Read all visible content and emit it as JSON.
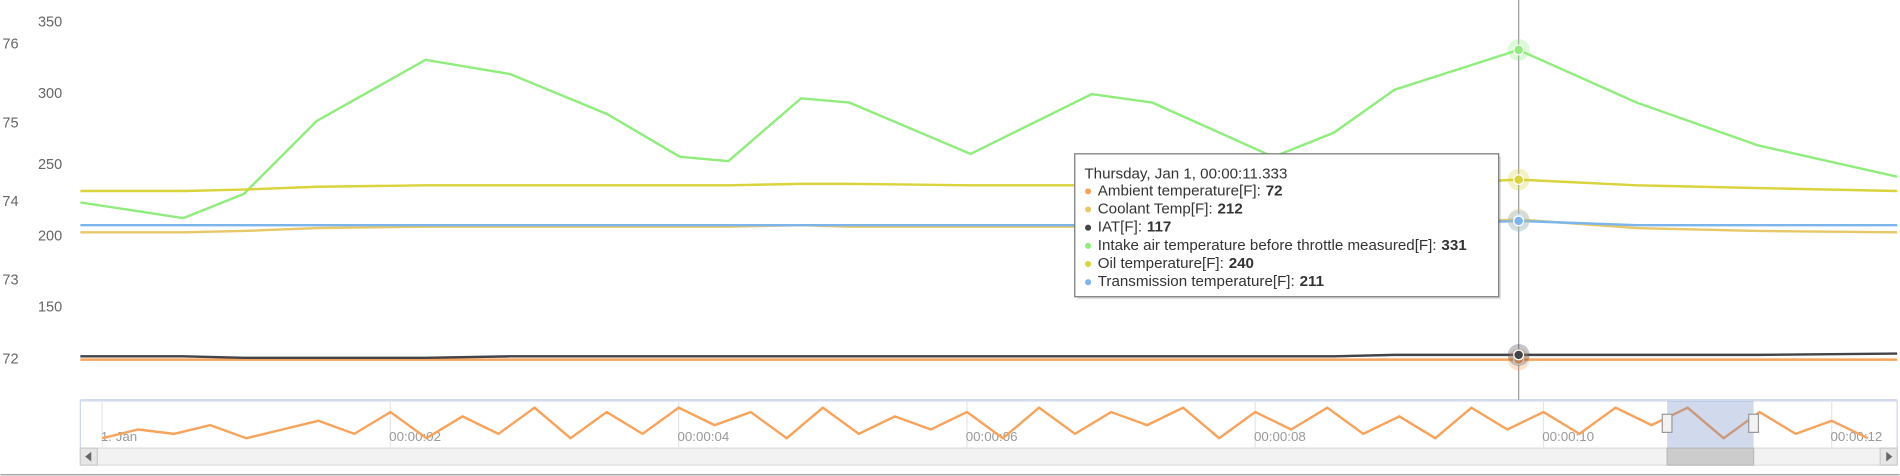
{
  "chart_data": {
    "type": "line",
    "x": [
      10.858,
      10.892,
      10.912,
      10.936,
      10.972,
      11.0,
      11.032,
      11.056,
      11.072,
      11.096,
      11.112,
      11.152,
      11.192,
      11.212,
      11.252,
      11.272,
      11.292,
      11.333,
      11.372,
      11.412,
      11.458
    ],
    "xlim": [
      10.858,
      11.458
    ],
    "ylim": [
      85.6,
      366
    ],
    "yticks": [
      150,
      200,
      250,
      300,
      350
    ],
    "y2lim": [
      71.49,
      76.57
    ],
    "y2ticks": [
      72,
      73,
      74,
      75,
      76
    ],
    "series": [
      {
        "name": "Ambient temperature[F]",
        "color": "#f7a35c",
        "axis": "y2",
        "values": [
          72,
          72,
          72,
          72,
          72,
          72,
          72,
          72,
          72,
          72,
          72,
          72,
          72,
          72,
          72,
          72,
          72,
          72,
          72,
          72,
          72
        ]
      },
      {
        "name": "Coolant Temp[F]",
        "color": "#e8c766",
        "values": [
          203,
          203,
          204,
          206,
          207,
          207,
          207,
          207,
          207,
          208,
          207,
          207,
          207,
          207,
          207,
          208,
          208,
          212,
          206,
          204,
          203
        ]
      },
      {
        "name": "IAT[F]",
        "color": "#434348",
        "values": [
          116,
          116,
          115,
          115,
          115,
          116,
          116,
          116,
          116,
          116,
          116,
          116,
          116,
          116,
          116,
          116,
          117,
          117,
          117,
          117,
          118
        ]
      },
      {
        "name": "Intake air temperature before throttle measured[F]",
        "color": "#90ed7d",
        "values": [
          224,
          213,
          230,
          281,
          324,
          314,
          286,
          256,
          253,
          297,
          294,
          258,
          300,
          294,
          256,
          273,
          303,
          331,
          294,
          264,
          242
        ]
      },
      {
        "name": "Oil temperature[F]",
        "color": "#d9d33c",
        "values": [
          232,
          232,
          233,
          235,
          236,
          236,
          236,
          236,
          236,
          237,
          237,
          236,
          236,
          236,
          236,
          236,
          236,
          240,
          236,
          234,
          232
        ]
      },
      {
        "name": "Transmission temperature[F]",
        "color": "#7cb5ec",
        "values": [
          208,
          208,
          208,
          208,
          208,
          208,
          208,
          208,
          208,
          208,
          208,
          208,
          208,
          208,
          208,
          208,
          208,
          211,
          208,
          208,
          208
        ]
      }
    ],
    "crosshair_index": 17,
    "tooltip": {
      "header": "Thursday, Jan 1, 00:00:11.333",
      "separator": ":"
    },
    "navigator": {
      "x": [
        0,
        0.25,
        0.5,
        0.75,
        1,
        1.25,
        1.5,
        1.75,
        2,
        2.25,
        2.5,
        2.75,
        3,
        3.25,
        3.5,
        3.75,
        4,
        4.25,
        4.5,
        4.75,
        5,
        5.25,
        5.5,
        5.75,
        6,
        6.25,
        6.5,
        6.75,
        7,
        7.25,
        7.5,
        7.75,
        8,
        8.25,
        8.5,
        8.75,
        9,
        9.25,
        9.5,
        9.75,
        10,
        10.25,
        10.5,
        10.75,
        11,
        11.25,
        11.5,
        11.75,
        12,
        12.25
      ],
      "values": [
        2,
        4,
        3,
        5,
        2,
        4,
        6,
        3,
        8,
        2,
        7,
        3,
        9,
        2,
        8,
        3,
        9,
        5,
        8,
        2,
        9,
        3,
        7,
        4,
        8,
        2,
        9,
        3,
        8,
        5,
        9,
        2,
        8,
        4,
        9,
        3,
        7,
        2,
        9,
        4,
        8,
        3,
        9,
        5,
        9,
        2,
        8,
        3,
        6,
        2
      ],
      "ylim": [
        0,
        10
      ],
      "xlim": [
        -0.151,
        12.454
      ],
      "xticks": [
        {
          "value": 0,
          "label": "1. Jan"
        },
        {
          "value": 2,
          "label": "00:00:02"
        },
        {
          "value": 4,
          "label": "00:00:04"
        },
        {
          "value": 6,
          "label": "00:00:06"
        },
        {
          "value": 8,
          "label": "00:00:08"
        },
        {
          "value": 10,
          "label": "00:00:10"
        },
        {
          "value": 12,
          "label": "00:00:12"
        }
      ]
    }
  }
}
